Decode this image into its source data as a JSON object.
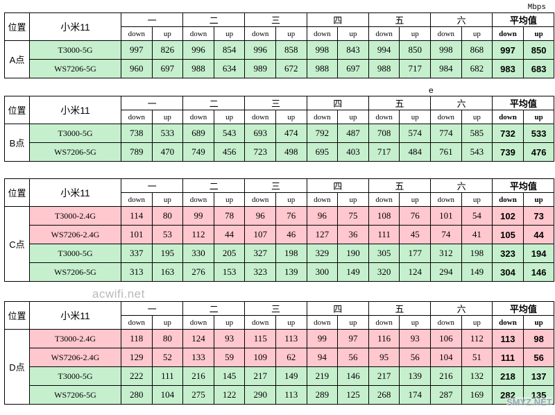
{
  "unit": "Mbps",
  "stray_mark": "e",
  "watermark": "acwifi.net",
  "site_mark": "SMYZ.NET",
  "header": {
    "position_label": "位置",
    "phone": "小米11",
    "days": [
      "一",
      "二",
      "三",
      "四",
      "五",
      "六"
    ],
    "average": "平均值",
    "down": "down",
    "up": "up"
  },
  "colors": {
    "green": "#c6efce",
    "red": "#ffc7ce"
  },
  "blocks": [
    {
      "position": "A点",
      "rows": [
        {
          "name": "T3000-5G",
          "color": "green",
          "values": [
            "997",
            "826",
            "996",
            "854",
            "996",
            "858",
            "998",
            "843",
            "994",
            "850",
            "998",
            "868"
          ],
          "avg": [
            "997",
            "850"
          ]
        },
        {
          "name": "WS7206-5G",
          "color": "green",
          "values": [
            "960",
            "697",
            "988",
            "634",
            "989",
            "672",
            "988",
            "697",
            "988",
            "717",
            "984",
            "682"
          ],
          "avg": [
            "983",
            "683"
          ]
        }
      ]
    },
    {
      "position": "B点",
      "rows": [
        {
          "name": "T3000-5G",
          "color": "green",
          "values": [
            "738",
            "533",
            "689",
            "543",
            "693",
            "474",
            "792",
            "487",
            "708",
            "574",
            "774",
            "585"
          ],
          "avg": [
            "732",
            "533"
          ]
        },
        {
          "name": "WS7206-5G",
          "color": "green",
          "values": [
            "789",
            "470",
            "749",
            "456",
            "723",
            "498",
            "695",
            "403",
            "717",
            "484",
            "761",
            "543"
          ],
          "avg": [
            "739",
            "476"
          ]
        }
      ]
    },
    {
      "position": "C点",
      "rows": [
        {
          "name": "T3000-2.4G",
          "color": "red",
          "values": [
            "114",
            "80",
            "99",
            "78",
            "96",
            "76",
            "96",
            "75",
            "108",
            "76",
            "101",
            "54"
          ],
          "avg": [
            "102",
            "73"
          ]
        },
        {
          "name": "WS7206-2.4G",
          "color": "red",
          "values": [
            "101",
            "53",
            "112",
            "44",
            "107",
            "46",
            "127",
            "36",
            "111",
            "45",
            "74",
            "41"
          ],
          "avg": [
            "105",
            "44"
          ]
        },
        {
          "name": "T3000-5G",
          "color": "green",
          "values": [
            "337",
            "195",
            "330",
            "205",
            "327",
            "198",
            "329",
            "190",
            "305",
            "177",
            "312",
            "198"
          ],
          "avg": [
            "323",
            "194"
          ]
        },
        {
          "name": "WS7206-5G",
          "color": "green",
          "values": [
            "313",
            "163",
            "276",
            "153",
            "323",
            "139",
            "300",
            "149",
            "320",
            "124",
            "294",
            "149"
          ],
          "avg": [
            "304",
            "146"
          ]
        }
      ]
    },
    {
      "position": "D点",
      "rows": [
        {
          "name": "T3000-2.4G",
          "color": "red",
          "values": [
            "118",
            "80",
            "124",
            "93",
            "115",
            "113",
            "99",
            "97",
            "116",
            "93",
            "106",
            "112"
          ],
          "avg": [
            "113",
            "98"
          ]
        },
        {
          "name": "WS7206-2.4G",
          "color": "red",
          "values": [
            "129",
            "52",
            "133",
            "59",
            "109",
            "62",
            "94",
            "56",
            "95",
            "56",
            "104",
            "51"
          ],
          "avg": [
            "111",
            "56"
          ]
        },
        {
          "name": "T3000-5G",
          "color": "green",
          "values": [
            "222",
            "111",
            "216",
            "145",
            "217",
            "149",
            "219",
            "146",
            "217",
            "139",
            "216",
            "132"
          ],
          "avg": [
            "218",
            "137"
          ]
        },
        {
          "name": "WS7206-5G",
          "color": "green",
          "values": [
            "280",
            "104",
            "275",
            "122",
            "290",
            "113",
            "289",
            "125",
            "268",
            "174",
            "287",
            "169"
          ],
          "avg": [
            "282",
            "135"
          ]
        }
      ]
    }
  ]
}
